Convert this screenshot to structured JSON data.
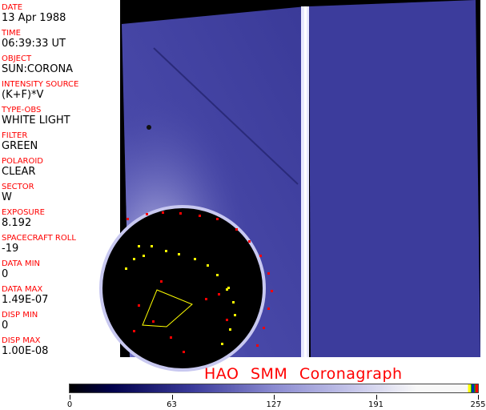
{
  "header_fields": [
    {
      "label": "DATE",
      "value": "13 Apr 1988"
    },
    {
      "label": "TIME",
      "value": "06:39:33 UT"
    },
    {
      "label": "OBJECT",
      "value": "SUN:CORONA"
    },
    {
      "label": "INTENSITY SOURCE",
      "value": "(K+F)*V"
    },
    {
      "label": "TYPE-OBS",
      "value": "WHITE LIGHT"
    },
    {
      "label": "FILTER",
      "value": "GREEN"
    },
    {
      "label": "POLAROID",
      "value": "CLEAR"
    },
    {
      "label": "SECTOR",
      "value": "W"
    },
    {
      "label": "EXPOSURE",
      "value": "8.192"
    },
    {
      "label": "SPACECRAFT ROLL",
      "value": "-19"
    },
    {
      "label": "DATA MIN",
      "value": "0"
    },
    {
      "label": "DATA MAX",
      "value": "1.49E-07"
    },
    {
      "label": "DISP MIN",
      "value": "0"
    },
    {
      "label": "DISP MAX",
      "value": "1.00E-08"
    }
  ],
  "title": "HAO   SMM Coronagraph",
  "colorbar": {
    "ticks": [
      "0",
      "63",
      "127",
      "191",
      "255"
    ],
    "colors": [
      "#000000",
      "#00004a",
      "#8a8ad0",
      "#f8f8f8"
    ],
    "overlay_colors": [
      "#ffff00",
      "#00aa00",
      "#0000ff",
      "#ff0000"
    ]
  }
}
